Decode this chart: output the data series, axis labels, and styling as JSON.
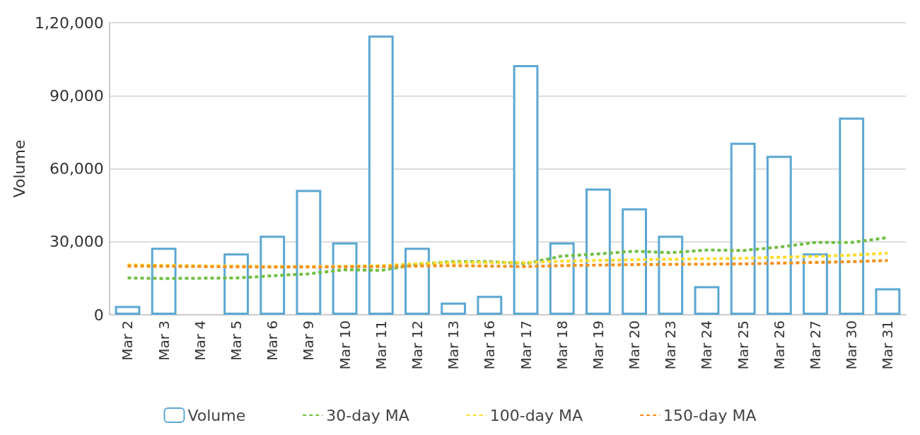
{
  "chart_data": {
    "type": "bar",
    "ylabel": "Volume",
    "categories": [
      "Mar 2",
      "Mar 3",
      "Mar 4",
      "Mar 5",
      "Mar 6",
      "Mar 9",
      "Mar 10",
      "Mar 11",
      "Mar 12",
      "Mar 13",
      "Mar 16",
      "Mar 17",
      "Mar 18",
      "Mar 19",
      "Mar 20",
      "Mar 23",
      "Mar 24",
      "Mar 25",
      "Mar 26",
      "Mar 27",
      "Mar 30",
      "Mar 31"
    ],
    "series": [
      {
        "name": "Volume",
        "color": "#5ba7d3",
        "values": [
          3600,
          27500,
          null,
          25200,
          32500,
          51300,
          29700,
          114700,
          27500,
          5000,
          7800,
          102600,
          29700,
          51900,
          43700,
          32500,
          11800,
          70700,
          65300,
          25200,
          81000,
          10900
        ]
      },
      {
        "name": "30-day MA",
        "type": "line",
        "color": "#70bf41",
        "line_style": "dashed",
        "values": [
          15100,
          14900,
          15000,
          15100,
          16000,
          16800,
          18500,
          18200,
          20700,
          21900,
          21900,
          21000,
          24100,
          25000,
          26100,
          25500,
          26600,
          26400,
          27800,
          29700,
          29700,
          31700
        ]
      },
      {
        "name": "100-day MA",
        "type": "line",
        "color": "#fedc2b",
        "line_style": "dashed",
        "values": [
          20500,
          20300,
          20100,
          20000,
          19800,
          19800,
          19900,
          20200,
          21000,
          21500,
          21500,
          21400,
          22000,
          22300,
          22600,
          22800,
          23000,
          23200,
          23600,
          24000,
          24500,
          25300
        ]
      },
      {
        "name": "150-day MA",
        "type": "line",
        "color": "#f39019",
        "line_style": "dashed",
        "values": [
          20000,
          19900,
          19800,
          19700,
          19600,
          19600,
          19700,
          19800,
          20000,
          20200,
          20000,
          19800,
          20200,
          20400,
          20600,
          20700,
          20800,
          20900,
          21200,
          21500,
          21800,
          22300
        ]
      }
    ],
    "ylim": [
      0,
      120000
    ],
    "yticks": [
      {
        "value": 0,
        "label": "0"
      },
      {
        "value": 30000,
        "label": "30,000"
      },
      {
        "value": 60000,
        "label": "60,000"
      },
      {
        "value": 90000,
        "label": "90,000"
      },
      {
        "value": 120000,
        "label": "1,20,000"
      }
    ],
    "grid": "y",
    "legend": "bottom",
    "marker": "none"
  }
}
